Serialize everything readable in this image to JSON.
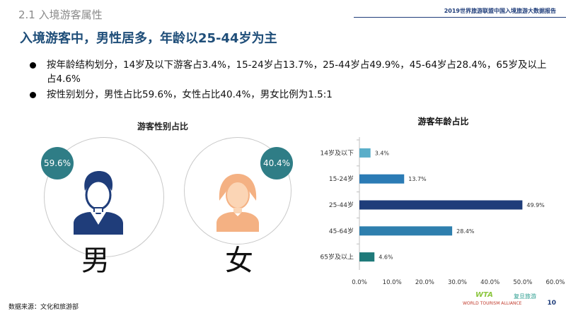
{
  "header": {
    "section_title": "2.1 入境游客属性",
    "report_title": "2019世界旅游联盟中国入境旅游大数据报告"
  },
  "headline": "入境游客中，男性居多，年龄以25-44岁为主",
  "bullets": [
    "按年龄结构划分，14岁及以下游客占3.4%，15-24岁占13.7%，25-44岁占49.9%，45-64岁占28.4%，65岁及以上占4.6%",
    "按性别划分，男性占比59.6%，女性占比40.4%，男女比例为1.5:1"
  ],
  "gender_panel": {
    "title": "游客性别占比",
    "male": {
      "label": "男",
      "percent": "59.6%"
    },
    "female": {
      "label": "女",
      "percent": "40.4%"
    }
  },
  "chart_data": {
    "type": "bar",
    "orientation": "horizontal",
    "title": "游客年龄占比",
    "categories": [
      "14岁及以下",
      "15-24岁",
      "25-44岁",
      "45-64岁",
      "65岁及以上"
    ],
    "values": [
      3.4,
      13.7,
      49.9,
      28.4,
      4.6
    ],
    "value_labels": [
      "3.4%",
      "13.7%",
      "49.9%",
      "28.4%",
      "4.6%"
    ],
    "xlim": [
      0,
      60
    ],
    "xticks": [
      "0.0%",
      "10.0%",
      "20.0%",
      "30.0%",
      "40.0%",
      "50.0%",
      "60.0%"
    ],
    "xtick_values": [
      0,
      10,
      20,
      30,
      40,
      50,
      60
    ],
    "bar_colors": [
      "#5aaec9",
      "#2b7bb5",
      "#1f3d7a",
      "#2e7fae",
      "#1f7a7a"
    ],
    "grid": false,
    "legend": "none"
  },
  "footer": {
    "source": "数据来源：文化和旅游部",
    "page_number": "10",
    "logos": [
      "WORLD TOURISM ALLIANCE",
      "WTA",
      "复旦旅游"
    ]
  },
  "colors": {
    "accent": "#1f4e79",
    "badge": "#2f7d86",
    "male_icon": "#1f3d7a",
    "female_icon": "#f4b183"
  }
}
